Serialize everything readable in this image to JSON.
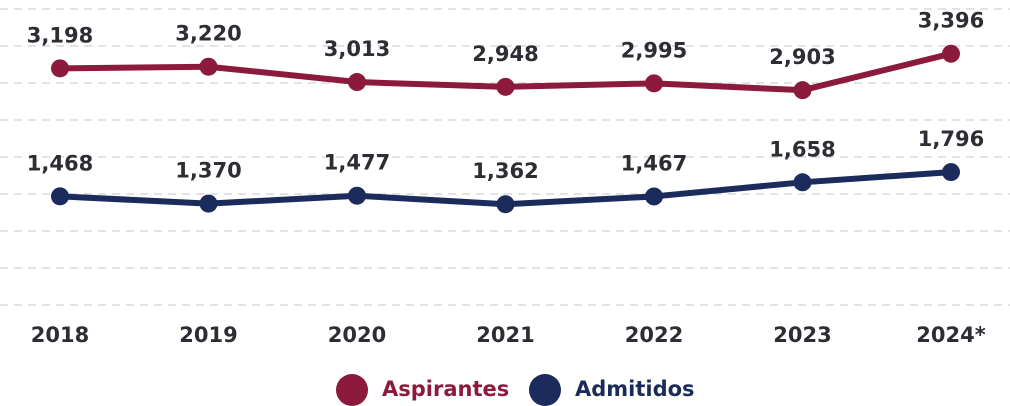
{
  "chart_data": {
    "type": "line",
    "categories": [
      "2018",
      "2019",
      "2020",
      "2021",
      "2022",
      "2023",
      "2024*"
    ],
    "series": [
      {
        "name": "Aspirantes",
        "color": "#8b1a3c",
        "values": [
          3198,
          3220,
          3013,
          2948,
          2995,
          2903,
          3396
        ],
        "value_labels": [
          "3,198",
          "3,220",
          "3,013",
          "2,948",
          "2,995",
          "2,903",
          "3,396"
        ]
      },
      {
        "name": "Admitidos",
        "color": "#1a2b5c",
        "values": [
          1468,
          1370,
          1477,
          1362,
          1467,
          1658,
          1796
        ],
        "value_labels": [
          "1,468",
          "1,370",
          "1,477",
          "1,362",
          "1,467",
          "1,658",
          "1,796"
        ]
      }
    ],
    "ylim": [
      0,
      4000
    ],
    "yticks": [
      0,
      500,
      1000,
      1500,
      2000,
      2500,
      3000,
      3500,
      4000
    ],
    "grid": true
  }
}
